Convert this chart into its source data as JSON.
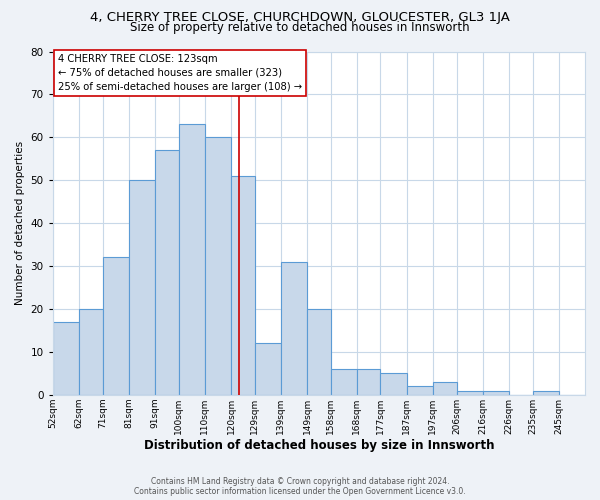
{
  "title": "4, CHERRY TREE CLOSE, CHURCHDOWN, GLOUCESTER, GL3 1JA",
  "subtitle": "Size of property relative to detached houses in Innsworth",
  "xlabel": "Distribution of detached houses by size in Innsworth",
  "ylabel": "Number of detached properties",
  "categories": [
    "52sqm",
    "62sqm",
    "71sqm",
    "81sqm",
    "91sqm",
    "100sqm",
    "110sqm",
    "120sqm",
    "129sqm",
    "139sqm",
    "149sqm",
    "158sqm",
    "168sqm",
    "177sqm",
    "187sqm",
    "197sqm",
    "206sqm",
    "216sqm",
    "226sqm",
    "235sqm",
    "245sqm"
  ],
  "values": [
    17,
    20,
    32,
    50,
    57,
    63,
    60,
    51,
    12,
    31,
    20,
    6,
    6,
    5,
    2,
    3,
    1,
    1,
    0,
    1,
    0
  ],
  "bar_color": "#c8d8ea",
  "bar_edge_color": "#5b9bd5",
  "vline_x": 123,
  "vline_color": "#cc0000",
  "ylim": [
    0,
    80
  ],
  "yticks": [
    0,
    10,
    20,
    30,
    40,
    50,
    60,
    70,
    80
  ],
  "bin_edges": [
    52,
    62,
    71,
    81,
    91,
    100,
    110,
    120,
    129,
    139,
    149,
    158,
    168,
    177,
    187,
    197,
    206,
    216,
    226,
    235,
    245,
    255
  ],
  "annotation_title": "4 CHERRY TREE CLOSE: 123sqm",
  "annotation_line1": "← 75% of detached houses are smaller (323)",
  "annotation_line2": "25% of semi-detached houses are larger (108) →",
  "annotation_box_color": "#ffffff",
  "annotation_box_edge": "#cc0000",
  "footer_line1": "Contains HM Land Registry data © Crown copyright and database right 2024.",
  "footer_line2": "Contains public sector information licensed under the Open Government Licence v3.0.",
  "bg_color": "#eef2f7",
  "plot_bg_color": "#ffffff",
  "grid_color": "#c8d8e8",
  "title_fontsize": 9.5,
  "subtitle_fontsize": 8.5,
  "xlabel_fontsize": 8.5,
  "ylabel_fontsize": 7.5
}
